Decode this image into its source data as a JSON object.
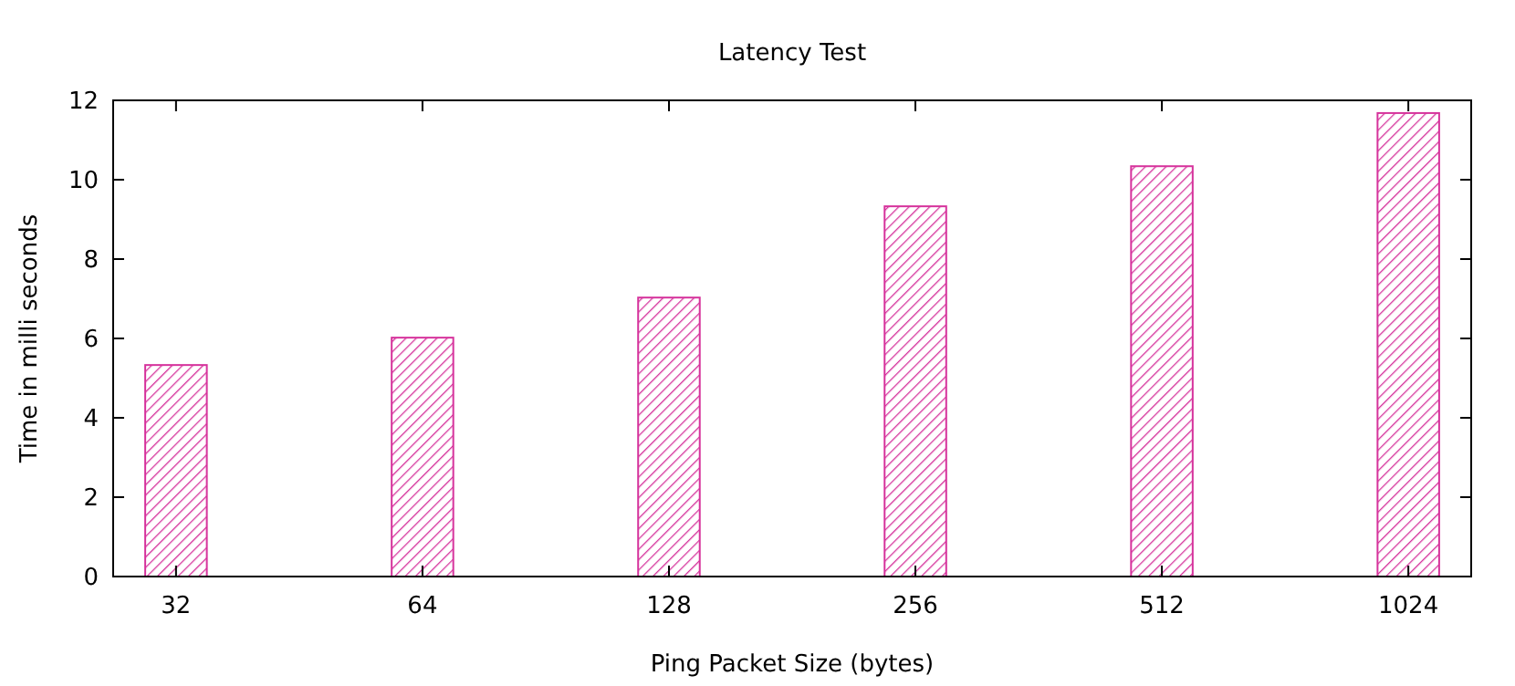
{
  "chart_data": {
    "type": "bar",
    "title": "Latency Test",
    "xlabel": "Ping Packet Size (bytes)",
    "ylabel": "Time in milli seconds",
    "categories": [
      "32",
      "64",
      "128",
      "256",
      "512",
      "1024"
    ],
    "values": [
      5.33,
      6.02,
      7.03,
      9.33,
      10.34,
      11.68
    ],
    "color": "#d6339c",
    "ylim": [
      0,
      12
    ],
    "yticks": [
      0,
      2,
      4,
      6,
      8,
      10,
      12
    ],
    "grid": false
  }
}
